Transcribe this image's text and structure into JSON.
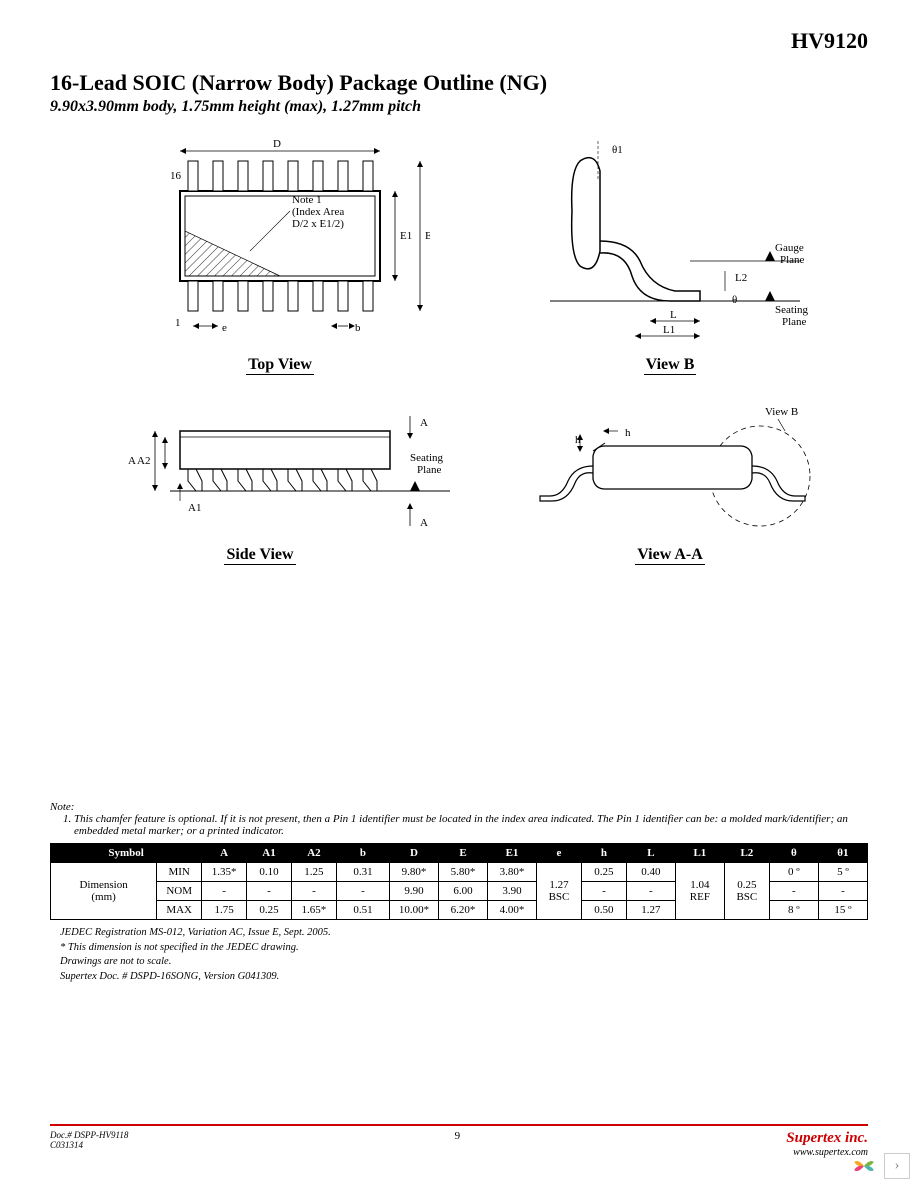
{
  "header_code": "HV9120",
  "title": "16-Lead SOIC (Narrow Body) Package Outline (NG)",
  "subtitle": "9.90x3.90mm body, 1.75mm height (max), 1.27mm pitch",
  "diagrams": {
    "top_view": {
      "caption": "Top View",
      "labels": {
        "D": "D",
        "E": "E",
        "E1": "E1",
        "e": "e",
        "b": "b",
        "pin16": "16",
        "pin1": "1",
        "note": "Note 1\n(Index Area\nD/2 x E1/2)"
      }
    },
    "view_b": {
      "caption": "View B",
      "labels": {
        "theta1": "θ1",
        "gauge": "Gauge\nPlane",
        "L": "L",
        "L1": "L1",
        "L2": "L2",
        "theta": "θ",
        "seating": "Seating\nPlane"
      }
    },
    "side_view": {
      "caption": "Side View",
      "labels": {
        "A": "A",
        "A1": "A1",
        "A2": "A2",
        "Aarrow": "A",
        "seating": "Seating\nPlane"
      }
    },
    "view_aa": {
      "caption": "View A-A",
      "labels": {
        "h": "h",
        "viewb": "View B"
      }
    }
  },
  "notes": {
    "header": "Note:",
    "item1": "This chamfer feature is optional. If it is not present, then a Pin 1 identifier must be located in the index area indicated. The Pin 1 identifier can be: a molded mark/identifier; an embedded metal marker; or a printed indicator."
  },
  "table": {
    "columns": [
      "Symbol",
      "A",
      "A1",
      "A2",
      "b",
      "D",
      "E",
      "E1",
      "e",
      "h",
      "L",
      "L1",
      "L2",
      "θ",
      "θ1"
    ],
    "col_widths": [
      "13%",
      "5.5%",
      "5.5%",
      "5.5%",
      "5.5%",
      "6.5%",
      "6%",
      "6%",
      "6%",
      "5.5%",
      "5.5%",
      "6%",
      "6%",
      "5.5%",
      "6%"
    ],
    "row_label": "Dimension\n(mm)",
    "rows": [
      {
        "label": "MIN",
        "cells": [
          "1.35*",
          "0.10",
          "1.25",
          "0.31",
          "9.80*",
          "5.80*",
          "3.80*",
          "",
          "0.25",
          "0.40",
          "",
          "",
          "0 º",
          "5 º"
        ]
      },
      {
        "label": "NOM",
        "cells": [
          "-",
          "-",
          "-",
          "-",
          "9.90",
          "6.00",
          "3.90",
          "1.27\nBSC",
          "-",
          "-",
          "1.04\nREF",
          "0.25\nBSC",
          "-",
          "-"
        ]
      },
      {
        "label": "MAX",
        "cells": [
          "1.75",
          "0.25",
          "1.65*",
          "0.51",
          "10.00*",
          "6.20*",
          "4.00*",
          "",
          "0.50",
          "1.27",
          "",
          "",
          "8 º",
          "15 º"
        ]
      }
    ]
  },
  "footnotes": [
    "JEDEC Registration MS-012, Variation AC, Issue E, Sept. 2005.",
    "* This dimension is not specified in the JEDEC drawing.",
    "Drawings are not to scale.",
    "Supertex Doc. # DSPD-16SONG, Version G041309."
  ],
  "footer": {
    "doc": "Doc.# DSPP-HV9118",
    "rev": "C031314",
    "page": "9",
    "brand": "Supertex inc.",
    "url": "www.supertex.com"
  },
  "colors": {
    "rule": "#cc0000",
    "brand": "#cc0000",
    "text": "#000000",
    "bg": "#ffffff"
  }
}
